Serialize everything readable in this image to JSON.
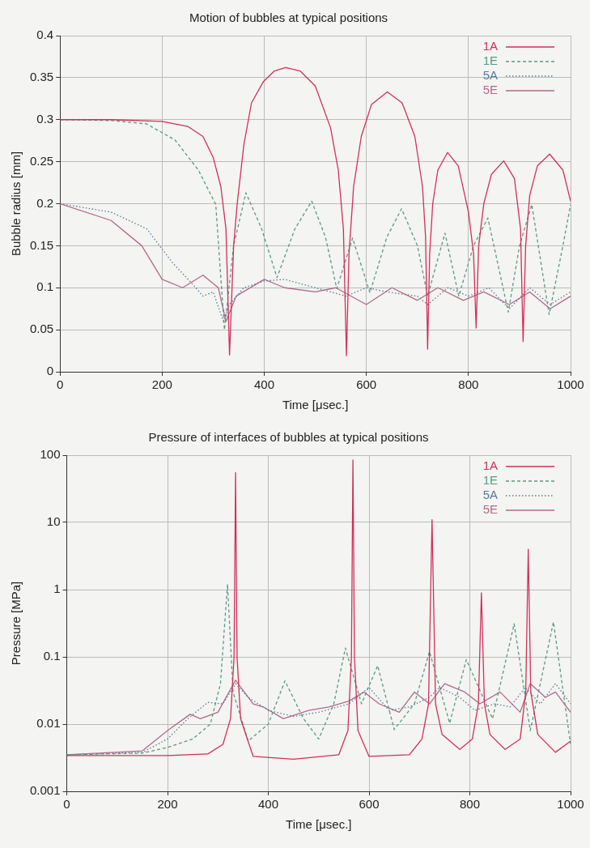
{
  "chart_data": [
    {
      "type": "line",
      "title": "Motion of bubbles at typical positions",
      "xlabel": "Time [μsec.]",
      "ylabel": "Bubble radius [mm]",
      "xlim": [
        0,
        1000
      ],
      "xticks": [
        0,
        200,
        400,
        600,
        800,
        1000
      ],
      "ylim": [
        0,
        0.4
      ],
      "yticks": [
        0,
        0.05,
        0.1,
        0.15,
        0.2,
        0.25,
        0.3,
        0.35,
        0.4
      ],
      "grid": true,
      "legend": "top right",
      "marker": "none",
      "series": [
        {
          "name": "1A",
          "color": "#d0305a",
          "line_style": "solid",
          "x": [
            0,
            100,
            200,
            250,
            280,
            300,
            315,
            325,
            332,
            340,
            347,
            360,
            375,
            398,
            420,
            442,
            470,
            500,
            530,
            545,
            555,
            561,
            566,
            575,
            590,
            610,
            641,
            670,
            695,
            710,
            716,
            720,
            724,
            730,
            740,
            759,
            780,
            800,
            810,
            815,
            820,
            830,
            845,
            869,
            890,
            902,
            907,
            912,
            920,
            935,
            959,
            985,
            1000
          ],
          "values": [
            0.3,
            0.3,
            0.298,
            0.292,
            0.28,
            0.255,
            0.22,
            0.17,
            0.02,
            0.15,
            0.2,
            0.27,
            0.32,
            0.345,
            0.358,
            0.362,
            0.358,
            0.34,
            0.29,
            0.24,
            0.17,
            0.019,
            0.14,
            0.22,
            0.28,
            0.318,
            0.333,
            0.32,
            0.28,
            0.22,
            0.16,
            0.027,
            0.14,
            0.2,
            0.24,
            0.261,
            0.245,
            0.19,
            0.14,
            0.052,
            0.15,
            0.2,
            0.235,
            0.251,
            0.23,
            0.17,
            0.036,
            0.15,
            0.21,
            0.245,
            0.259,
            0.24,
            0.203
          ]
        },
        {
          "name": "1E",
          "color": "#5a9a80",
          "line_style": "dashed",
          "x": [
            0,
            100,
            169,
            225,
            271,
            305,
            322,
            340,
            364,
            395,
            425,
            460,
            493,
            520,
            542,
            573,
            607,
            640,
            669,
            700,
            720,
            754,
            781,
            810,
            838,
            878,
            900,
            924,
            958,
            985,
            1000
          ],
          "values": [
            0.3,
            0.299,
            0.295,
            0.276,
            0.24,
            0.199,
            0.05,
            0.15,
            0.213,
            0.17,
            0.112,
            0.17,
            0.203,
            0.16,
            0.099,
            0.159,
            0.094,
            0.16,
            0.194,
            0.15,
            0.09,
            0.165,
            0.09,
            0.15,
            0.183,
            0.071,
            0.15,
            0.199,
            0.068,
            0.15,
            0.199
          ]
        },
        {
          "name": "5A",
          "color": "#5a7a94",
          "line_style": "dotted",
          "x": [
            0,
            100,
            170,
            220,
            263,
            280,
            300,
            320,
            332,
            360,
            400,
            440,
            500,
            560,
            600,
            640,
            700,
            720,
            760,
            800,
            840,
            880,
            920,
            960,
            1000
          ],
          "values": [
            0.2,
            0.19,
            0.17,
            0.13,
            0.102,
            0.09,
            0.095,
            0.06,
            0.08,
            0.1,
            0.108,
            0.11,
            0.1,
            0.09,
            0.1,
            0.095,
            0.09,
            0.08,
            0.1,
            0.09,
            0.1,
            0.075,
            0.1,
            0.08,
            0.095
          ]
        },
        {
          "name": "5E",
          "color": "#b06a8a",
          "line_style": "solid",
          "x": [
            0,
            100,
            160,
            200,
            240,
            280,
            310,
            325,
            345,
            400,
            440,
            500,
            540,
            600,
            650,
            700,
            740,
            790,
            830,
            880,
            920,
            960,
            1000
          ],
          "values": [
            0.2,
            0.18,
            0.15,
            0.11,
            0.1,
            0.115,
            0.1,
            0.06,
            0.09,
            0.11,
            0.1,
            0.095,
            0.1,
            0.08,
            0.1,
            0.085,
            0.1,
            0.085,
            0.095,
            0.08,
            0.095,
            0.075,
            0.09
          ]
        }
      ]
    },
    {
      "type": "line",
      "title": "Pressure of interfaces of bubbles at typical positions",
      "xlabel": "Time [μsec.]",
      "ylabel": "Pressure [MPa]",
      "log": true,
      "xlim": [
        0,
        1000
      ],
      "xticks": [
        0,
        200,
        400,
        600,
        800,
        1000
      ],
      "ylim": [
        0.001,
        100
      ],
      "yticks": [
        0.001,
        0.01,
        0.1,
        1,
        10,
        100
      ],
      "grid": true,
      "legend": "top right",
      "marker": "none",
      "series": [
        {
          "name": "1A",
          "color": "#d0305a",
          "line_style": "solid",
          "x": [
            0,
            200,
            280,
            310,
            325,
            332,
            335,
            338,
            345,
            370,
            450,
            540,
            558,
            565,
            568,
            571,
            578,
            600,
            680,
            705,
            718,
            725,
            732,
            745,
            780,
            805,
            817,
            823,
            829,
            840,
            870,
            900,
            911,
            916,
            921,
            935,
            970,
            1000
          ],
          "values": [
            0.0034,
            0.0034,
            0.0036,
            0.005,
            0.012,
            0.1,
            55,
            0.1,
            0.012,
            0.0033,
            0.003,
            0.0035,
            0.008,
            0.1,
            85,
            0.1,
            0.008,
            0.0033,
            0.0035,
            0.006,
            0.02,
            11,
            0.02,
            0.007,
            0.0042,
            0.006,
            0.02,
            0.9,
            0.02,
            0.007,
            0.0042,
            0.006,
            0.03,
            4,
            0.03,
            0.007,
            0.0038,
            0.0056
          ]
        },
        {
          "name": "1E",
          "color": "#5a9a80",
          "line_style": "dashed",
          "x": [
            0,
            150,
            200,
            250,
            285,
            305,
            319,
            330,
            360,
            400,
            433,
            470,
            500,
            530,
            553,
            585,
            617,
            650,
            690,
            720,
            760,
            793,
            845,
            888,
            920,
            966,
            1000
          ],
          "values": [
            0.0035,
            0.0037,
            0.0045,
            0.006,
            0.01,
            0.04,
            1.2,
            0.03,
            0.0056,
            0.01,
            0.044,
            0.012,
            0.006,
            0.02,
            0.135,
            0.02,
            0.074,
            0.0083,
            0.02,
            0.12,
            0.0103,
            0.091,
            0.012,
            0.31,
            0.008,
            0.33,
            0.005
          ]
        },
        {
          "name": "5A",
          "color": "#5a7a94",
          "line_style": "dotted",
          "x": [
            0,
            150,
            200,
            240,
            280,
            310,
            335,
            360,
            400,
            450,
            500,
            560,
            600,
            640,
            680,
            720,
            740,
            780,
            810,
            850,
            880,
            910,
            940,
            970,
            1000
          ],
          "values": [
            0.0035,
            0.0038,
            0.006,
            0.012,
            0.021,
            0.02,
            0.04,
            0.025,
            0.016,
            0.013,
            0.015,
            0.02,
            0.035,
            0.016,
            0.018,
            0.025,
            0.035,
            0.025,
            0.016,
            0.02,
            0.018,
            0.035,
            0.02,
            0.04,
            0.02
          ]
        },
        {
          "name": "5E",
          "color": "#b06a8a",
          "line_style": "solid",
          "x": [
            0,
            150,
            200,
            245,
            265,
            300,
            335,
            370,
            390,
            430,
            480,
            520,
            560,
            590,
            620,
            660,
            690,
            720,
            750,
            790,
            820,
            860,
            900,
            920,
            950,
            970,
            1000
          ],
          "values": [
            0.0035,
            0.004,
            0.008,
            0.014,
            0.012,
            0.015,
            0.045,
            0.02,
            0.018,
            0.012,
            0.016,
            0.018,
            0.022,
            0.03,
            0.02,
            0.015,
            0.03,
            0.02,
            0.04,
            0.03,
            0.02,
            0.03,
            0.015,
            0.04,
            0.025,
            0.03,
            0.015
          ]
        }
      ]
    }
  ]
}
